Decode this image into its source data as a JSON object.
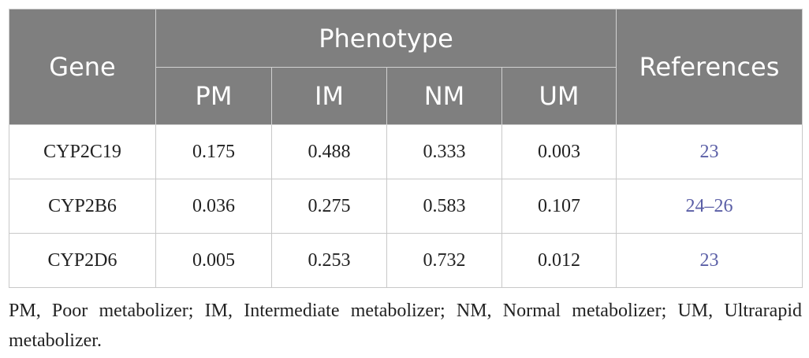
{
  "table": {
    "header": {
      "gene": "Gene",
      "phenotype": "Phenotype",
      "references": "References",
      "sub": [
        "PM",
        "IM",
        "NM",
        "UM"
      ]
    },
    "rows": [
      [
        "CYP2C19",
        "0.175",
        "0.488",
        "0.333",
        "0.003",
        "23"
      ],
      [
        "CYP2B6",
        "0.036",
        "0.275",
        "0.583",
        "0.107",
        "24–26"
      ],
      [
        "CYP2D6",
        "0.005",
        "0.253",
        "0.732",
        "0.012",
        "23"
      ]
    ]
  },
  "footnote": "PM, Poor metabolizer; IM, Intermediate metabolizer; NM, Normal metabolizer; UM, Ultrarapid metabolizer."
}
